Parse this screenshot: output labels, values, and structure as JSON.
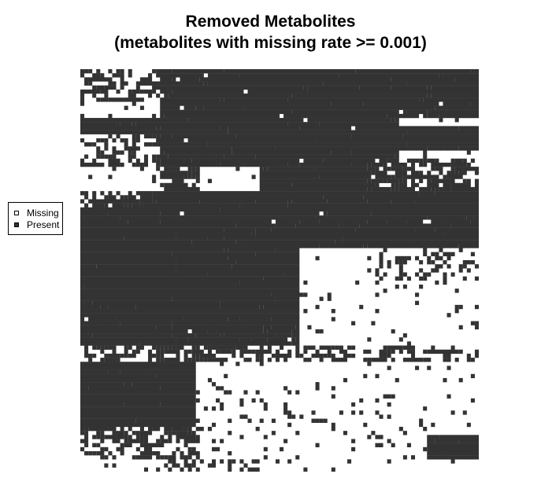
{
  "chart_data": {
    "type": "heatmap",
    "title_lines": [
      "Removed Metabolites",
      "(metabolites with missing rate >= 0.001)"
    ],
    "xlabel": "",
    "ylabel": "",
    "grid": false,
    "legend_position": "left",
    "legend": [
      {
        "label": "Missing",
        "color": "#ffffff"
      },
      {
        "label": "Present",
        "color": "#333333"
      }
    ],
    "colors": {
      "missing": "#ffffff",
      "present": "#333333"
    },
    "n_rows": 100,
    "n_cols": 100,
    "dense_regions": [
      {
        "rows": [
          0,
          99
        ],
        "cols": [
          0,
          99
        ],
        "density": 0.05
      },
      {
        "rows": [
          0,
          8
        ],
        "cols": [
          0,
          20
        ],
        "density": 0.55
      },
      {
        "rows": [
          0,
          12
        ],
        "cols": [
          20,
          45
        ],
        "density": 0.92
      },
      {
        "rows": [
          0,
          30
        ],
        "cols": [
          45,
          80
        ],
        "density": 0.95
      },
      {
        "rows": [
          0,
          12
        ],
        "cols": [
          80,
          100
        ],
        "density": 0.9
      },
      {
        "rows": [
          12,
          18
        ],
        "cols": [
          0,
          20
        ],
        "density": 0.96
      },
      {
        "rows": [
          12,
          24
        ],
        "cols": [
          20,
          45
        ],
        "density": 0.92
      },
      {
        "rows": [
          16,
          24
        ],
        "cols": [
          0,
          20
        ],
        "density": 0.45
      },
      {
        "rows": [
          14,
          20
        ],
        "cols": [
          80,
          100
        ],
        "density": 0.95
      },
      {
        "rows": [
          22,
          30
        ],
        "cols": [
          72,
          100
        ],
        "density": 0.6
      },
      {
        "rows": [
          24,
          30
        ],
        "cols": [
          20,
          30
        ],
        "density": 0.6
      },
      {
        "rows": [
          30,
          34
        ],
        "cols": [
          0,
          20
        ],
        "density": 0.65
      },
      {
        "rows": [
          30,
          36
        ],
        "cols": [
          20,
          100
        ],
        "density": 0.95
      },
      {
        "rows": [
          34,
          70
        ],
        "cols": [
          0,
          20
        ],
        "density": 0.97
      },
      {
        "rows": [
          36,
          52
        ],
        "cols": [
          20,
          55
        ],
        "density": 0.95
      },
      {
        "rows": [
          36,
          44
        ],
        "cols": [
          55,
          100
        ],
        "density": 0.92
      },
      {
        "rows": [
          44,
          52
        ],
        "cols": [
          72,
          100
        ],
        "density": 0.3
      },
      {
        "rows": [
          52,
          62
        ],
        "cols": [
          20,
          55
        ],
        "density": 0.93
      },
      {
        "rows": [
          55,
          64
        ],
        "cols": [
          55,
          100
        ],
        "density": 0.05
      },
      {
        "rows": [
          62,
          68
        ],
        "cols": [
          20,
          55
        ],
        "density": 0.9
      },
      {
        "rows": [
          68,
          72
        ],
        "cols": [
          0,
          100
        ],
        "density": 0.45
      },
      {
        "rows": [
          72,
          90
        ],
        "cols": [
          0,
          29
        ],
        "density": 0.97
      },
      {
        "rows": [
          78,
          92
        ],
        "cols": [
          29,
          80
        ],
        "density": 0.12
      },
      {
        "rows": [
          88,
          92
        ],
        "cols": [
          0,
          30
        ],
        "density": 0.55
      },
      {
        "rows": [
          92,
          96
        ],
        "cols": [
          0,
          30
        ],
        "density": 0.35
      },
      {
        "rows": [
          90,
          96
        ],
        "cols": [
          87,
          100
        ],
        "density": 0.97
      },
      {
        "rows": [
          96,
          99
        ],
        "cols": [
          20,
          45
        ],
        "density": 0.35
      }
    ],
    "blank_rows": [
      99
    ],
    "noise_seed": 7
  }
}
